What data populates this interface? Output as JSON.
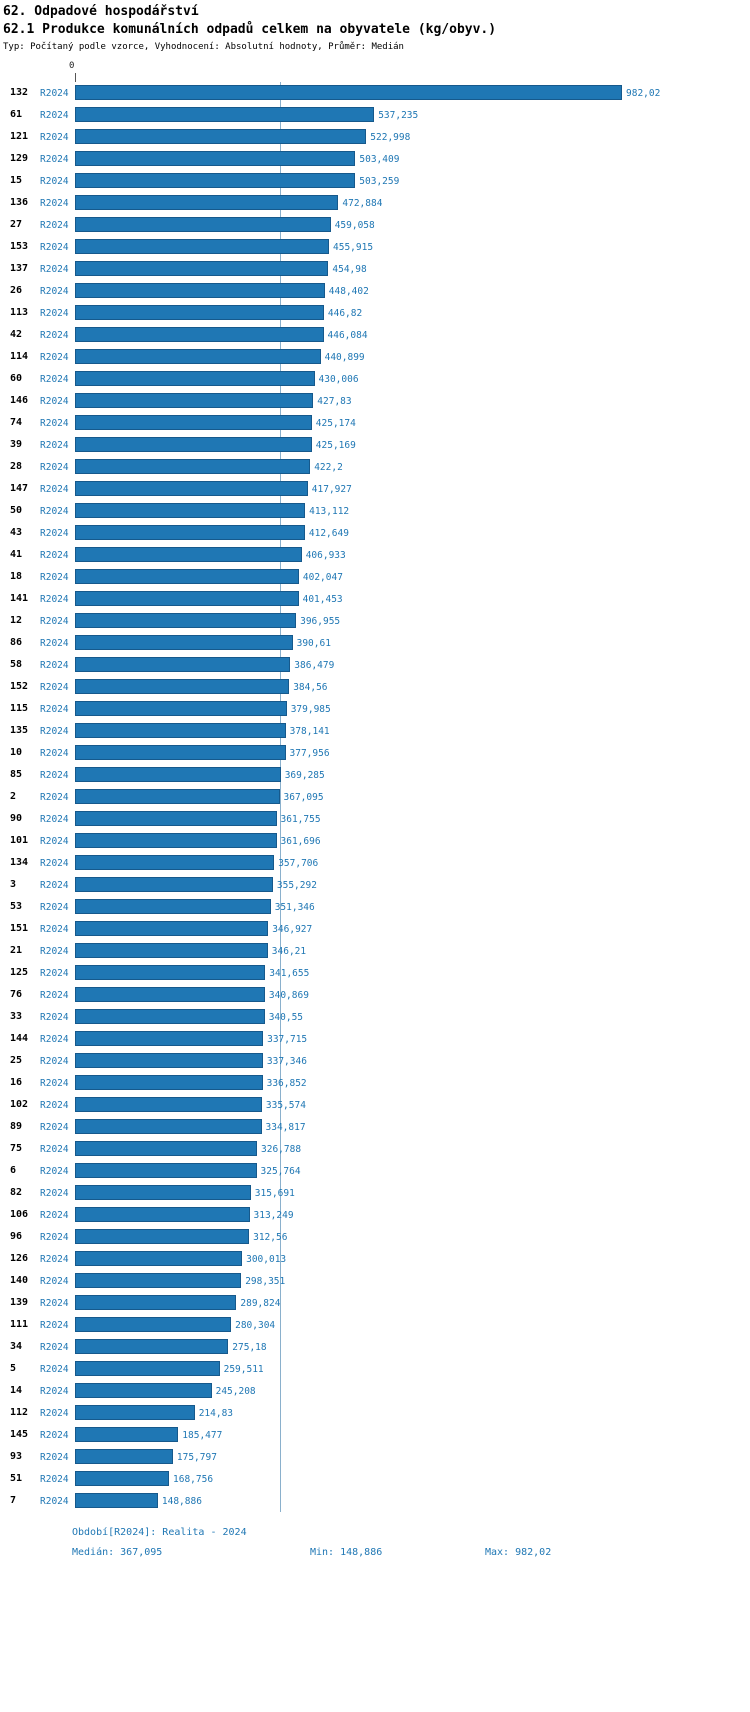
{
  "header": {
    "title": "62. Odpadové hospodářství",
    "subtitle": "62.1 Produkce komunálních odpadů celkem na obyvatele (kg/obyv.)",
    "meta": "Typ: Počítaný podle vzorce, Vyhodnocení: Absolutní hodnoty, Průměr: Medián"
  },
  "axis": {
    "zero_label": "0"
  },
  "chart_data": {
    "type": "bar",
    "orientation": "horizontal",
    "title": "62.1 Produkce komunálních odpadů celkem na obyvatele (kg/obyv.)",
    "xlabel": "",
    "ylabel": "",
    "value_unit": "kg/obyv.",
    "series_label": "R2024",
    "x_axis_ticks": [
      "0"
    ],
    "grid": false,
    "legend": false,
    "bar_color": "#1f77b4",
    "median_line_color": "#8ab0cc",
    "median": 367.095,
    "min": 148.886,
    "max": 982.02,
    "rows": [
      {
        "id": "132",
        "value": 982.02
      },
      {
        "id": "61",
        "value": 537.235
      },
      {
        "id": "121",
        "value": 522.998
      },
      {
        "id": "129",
        "value": 503.409
      },
      {
        "id": "15",
        "value": 503.259
      },
      {
        "id": "136",
        "value": 472.884
      },
      {
        "id": "27",
        "value": 459.058
      },
      {
        "id": "153",
        "value": 455.915
      },
      {
        "id": "137",
        "value": 454.98
      },
      {
        "id": "26",
        "value": 448.402
      },
      {
        "id": "113",
        "value": 446.82
      },
      {
        "id": "42",
        "value": 446.084
      },
      {
        "id": "114",
        "value": 440.899
      },
      {
        "id": "60",
        "value": 430.006
      },
      {
        "id": "146",
        "value": 427.83
      },
      {
        "id": "74",
        "value": 425.174
      },
      {
        "id": "39",
        "value": 425.169
      },
      {
        "id": "28",
        "value": 422.2
      },
      {
        "id": "147",
        "value": 417.927
      },
      {
        "id": "50",
        "value": 413.112
      },
      {
        "id": "43",
        "value": 412.649
      },
      {
        "id": "41",
        "value": 406.933
      },
      {
        "id": "18",
        "value": 402.047
      },
      {
        "id": "141",
        "value": 401.453
      },
      {
        "id": "12",
        "value": 396.955
      },
      {
        "id": "86",
        "value": 390.61
      },
      {
        "id": "58",
        "value": 386.479
      },
      {
        "id": "152",
        "value": 384.56
      },
      {
        "id": "115",
        "value": 379.985
      },
      {
        "id": "135",
        "value": 378.141
      },
      {
        "id": "10",
        "value": 377.956
      },
      {
        "id": "85",
        "value": 369.285
      },
      {
        "id": "2",
        "value": 367.095
      },
      {
        "id": "90",
        "value": 361.755
      },
      {
        "id": "101",
        "value": 361.696
      },
      {
        "id": "134",
        "value": 357.706
      },
      {
        "id": "3",
        "value": 355.292
      },
      {
        "id": "53",
        "value": 351.346
      },
      {
        "id": "151",
        "value": 346.927
      },
      {
        "id": "21",
        "value": 346.21
      },
      {
        "id": "125",
        "value": 341.655
      },
      {
        "id": "76",
        "value": 340.869
      },
      {
        "id": "33",
        "value": 340.55
      },
      {
        "id": "144",
        "value": 337.715
      },
      {
        "id": "25",
        "value": 337.346
      },
      {
        "id": "16",
        "value": 336.852
      },
      {
        "id": "102",
        "value": 335.574
      },
      {
        "id": "89",
        "value": 334.817
      },
      {
        "id": "75",
        "value": 326.788
      },
      {
        "id": "6",
        "value": 325.764
      },
      {
        "id": "82",
        "value": 315.691
      },
      {
        "id": "106",
        "value": 313.249
      },
      {
        "id": "96",
        "value": 312.56
      },
      {
        "id": "126",
        "value": 300.013
      },
      {
        "id": "140",
        "value": 298.351
      },
      {
        "id": "139",
        "value": 289.824
      },
      {
        "id": "111",
        "value": 280.304
      },
      {
        "id": "34",
        "value": 275.18
      },
      {
        "id": "5",
        "value": 259.511
      },
      {
        "id": "14",
        "value": 245.208
      },
      {
        "id": "112",
        "value": 214.83
      },
      {
        "id": "145",
        "value": 185.477
      },
      {
        "id": "93",
        "value": 175.797
      },
      {
        "id": "51",
        "value": 168.756
      },
      {
        "id": "7",
        "value": 148.886
      }
    ]
  },
  "footer": {
    "period": "Období[R2024]: Realita - 2024",
    "median": "Medián: 367,095",
    "min": "Min: 148,886",
    "max": "Max: 982,02"
  }
}
